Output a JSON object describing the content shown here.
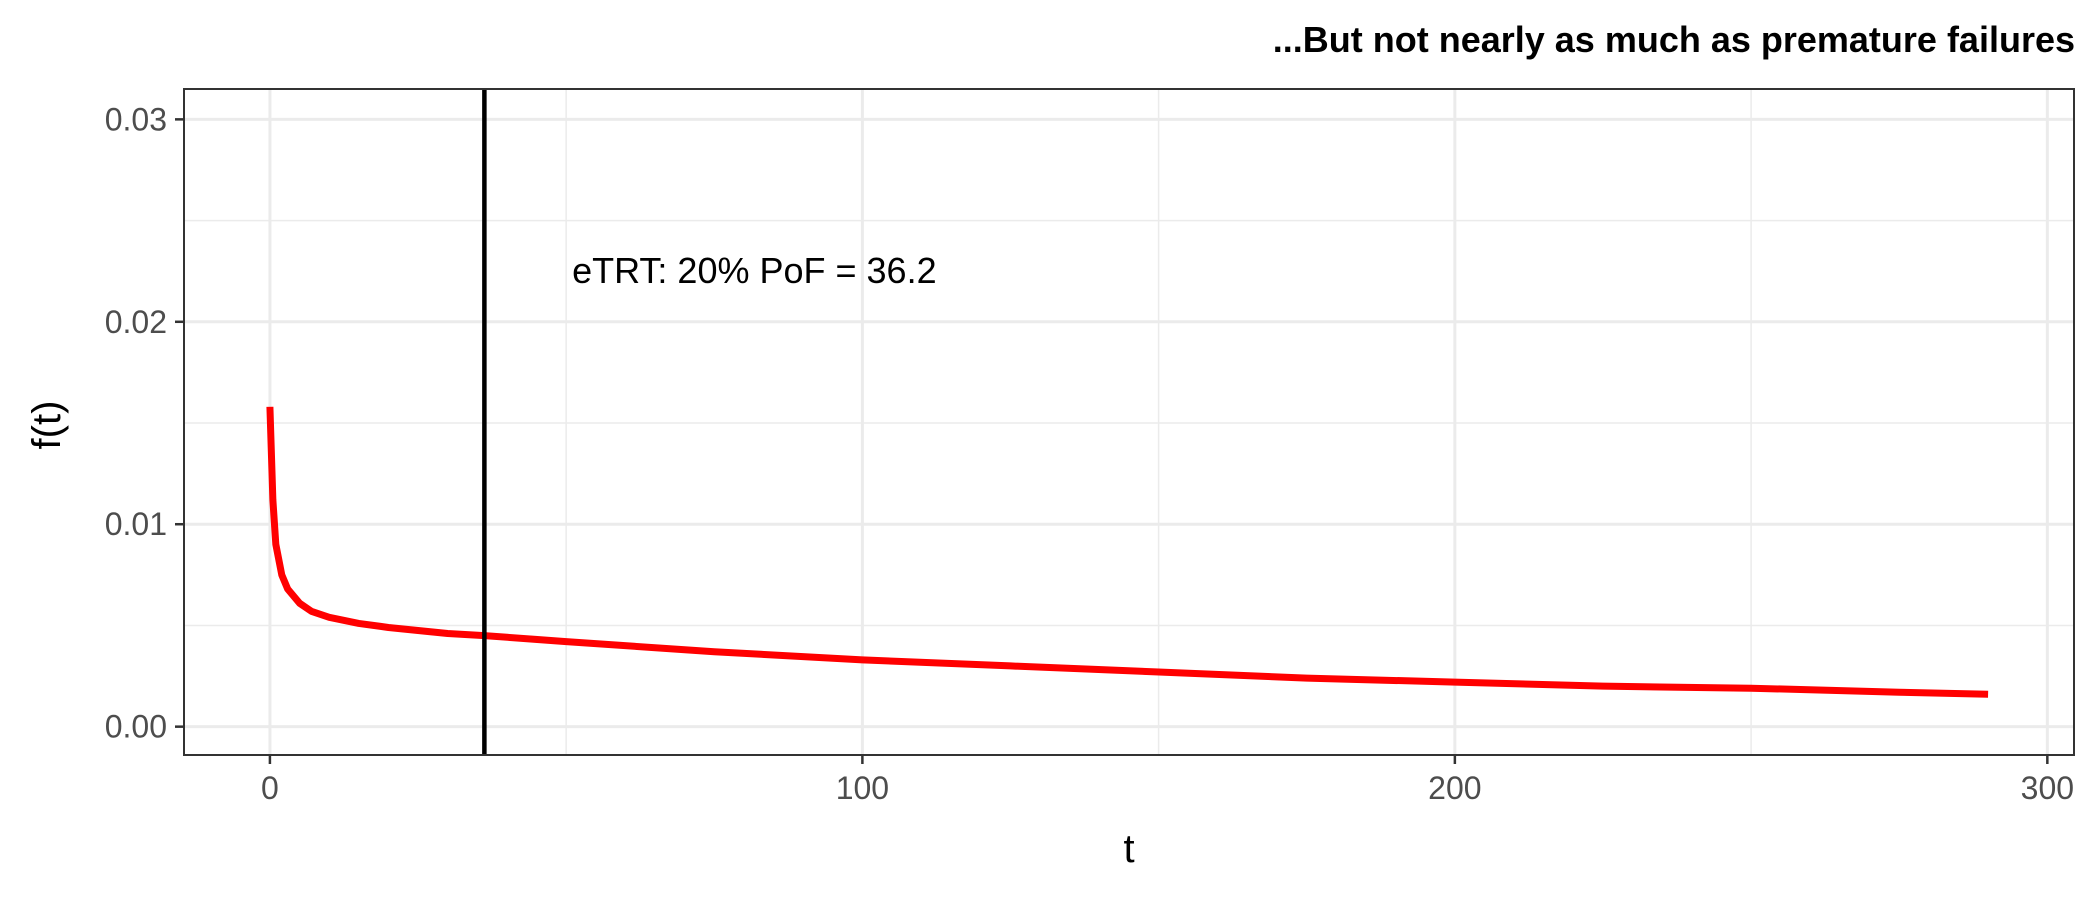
{
  "chart_data": {
    "type": "line",
    "title": "...But not nearly as much as premature failures",
    "xlabel": "t",
    "ylabel": "f(t)",
    "xlim": [
      -14.5,
      304.5
    ],
    "ylim": [
      -0.0014,
      0.0315
    ],
    "x_ticks": [
      0,
      100,
      200,
      300
    ],
    "x_tick_labels": [
      "0",
      "100",
      "200",
      "300"
    ],
    "y_ticks": [
      0.0,
      0.01,
      0.02,
      0.03
    ],
    "y_tick_labels": [
      "0.00",
      "0.01",
      "0.02",
      "0.03"
    ],
    "grid": true,
    "vline": {
      "x": 36.2,
      "color": "#000000"
    },
    "annotation": {
      "text": "eTRT: 20% PoF = 36.2",
      "x": 51,
      "y": 0.0225
    },
    "series": [
      {
        "color": "#ff0000",
        "x": [
          0,
          0.5,
          1,
          2,
          3,
          5,
          7,
          10,
          15,
          20,
          30,
          36.2,
          50,
          75,
          100,
          125,
          150,
          175,
          200,
          225,
          250,
          275,
          290
        ],
        "y": [
          0.0158,
          0.0112,
          0.009,
          0.0075,
          0.0068,
          0.0061,
          0.0057,
          0.0054,
          0.0051,
          0.0049,
          0.0046,
          0.0045,
          0.0042,
          0.0037,
          0.0033,
          0.003,
          0.0027,
          0.0024,
          0.0022,
          0.002,
          0.0019,
          0.0017,
          0.0016
        ]
      }
    ]
  }
}
